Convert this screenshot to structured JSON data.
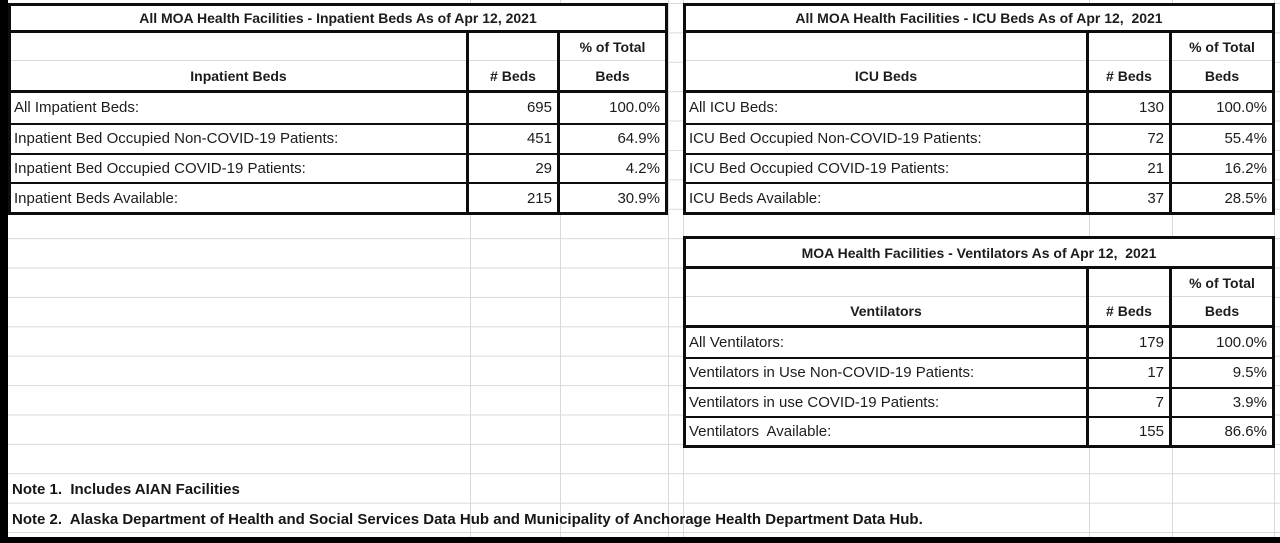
{
  "canvas": {
    "colors": {
      "background": "#ffffff",
      "frame": "#000000",
      "table_border": "#0d0d0d",
      "grid_line": "#d9d9d9",
      "text": "#1c1c1c"
    }
  },
  "tables": {
    "inpatient": {
      "title": "All MOA Health Facilities - Inpatient Beds As of Apr 12, 2021",
      "header": {
        "label": "Inpatient Beds",
        "beds": "# Beds",
        "pct_line1": "% of Total",
        "pct_line2": "Beds"
      },
      "rows": [
        {
          "label": "All Impatient Beds:",
          "beds": "695",
          "pct": "100.0%"
        },
        {
          "label": "Inpatient Bed Occupied Non-COVID-19 Patients:",
          "beds": "451",
          "pct": "64.9%"
        },
        {
          "label": "Inpatient Bed Occupied COVID-19 Patients:",
          "beds": "29",
          "pct": "4.2%"
        },
        {
          "label": "Inpatient Beds Available:",
          "beds": "215",
          "pct": "30.9%"
        }
      ]
    },
    "icu": {
      "title": "All MOA Health Facilities - ICU Beds As of Apr 12,  2021",
      "header": {
        "label": "ICU Beds",
        "beds": "# Beds",
        "pct_line1": "% of Total",
        "pct_line2": "Beds"
      },
      "rows": [
        {
          "label": "All ICU Beds:",
          "beds": "130",
          "pct": "100.0%"
        },
        {
          "label": "ICU Bed Occupied Non-COVID-19 Patients:",
          "beds": "72",
          "pct": "55.4%"
        },
        {
          "label": "ICU Bed Occupied COVID-19 Patients:",
          "beds": "21",
          "pct": "16.2%"
        },
        {
          "label": "ICU Beds Available:",
          "beds": "37",
          "pct": "28.5%"
        }
      ]
    },
    "ventilators": {
      "title": "MOA Health Facilities - Ventilators As of Apr 12,  2021",
      "header": {
        "label": "Ventilators",
        "beds": "# Beds",
        "pct_line1": "% of Total",
        "pct_line2": "Beds"
      },
      "rows": [
        {
          "label": "All Ventilators:",
          "beds": "179",
          "pct": "100.0%"
        },
        {
          "label": "Ventilators in Use Non-COVID-19 Patients:",
          "beds": "17",
          "pct": "9.5%"
        },
        {
          "label": "Ventilators in use COVID-19 Patients:",
          "beds": "7",
          "pct": "3.9%"
        },
        {
          "label": "Ventilators  Available:",
          "beds": "155",
          "pct": "86.6%"
        }
      ]
    }
  },
  "notes": {
    "note1": "Note 1.  Includes AIAN Facilities",
    "note2": "Note 2.  Alaska Department of Health and Social Services Data Hub and Municipality of Anchorage Health Department Data Hub."
  }
}
